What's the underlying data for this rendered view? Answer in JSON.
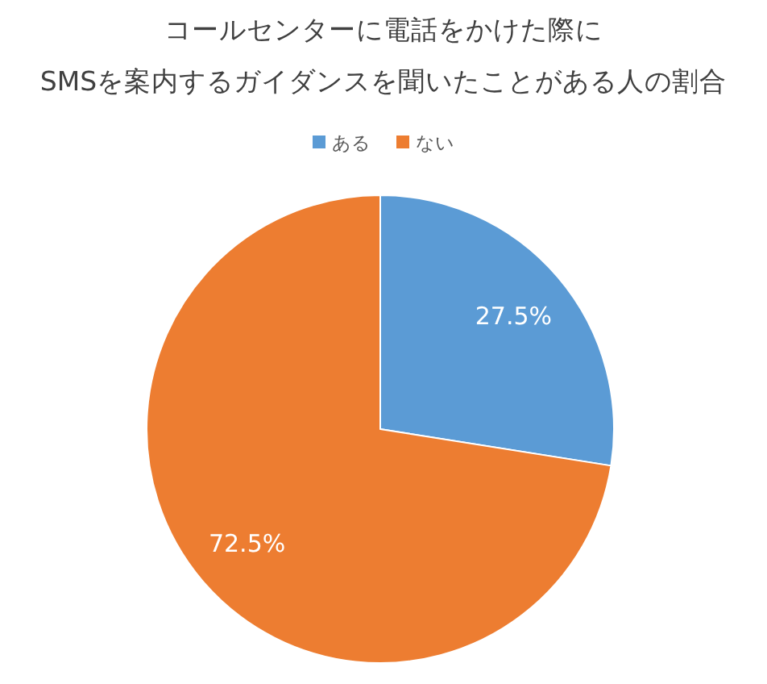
{
  "chart_data": {
    "type": "pie",
    "title": "コールセンターに電話をかけた際に\nSMSを案内するガイダンスを聞いたことがある人の割合",
    "categories": [
      "ある",
      "ない"
    ],
    "values": [
      27.5,
      72.5
    ],
    "colors": [
      "#5b9bd5",
      "#ed7d31"
    ],
    "value_labels": [
      "27.5%",
      "72.5%"
    ],
    "legend": "top"
  }
}
